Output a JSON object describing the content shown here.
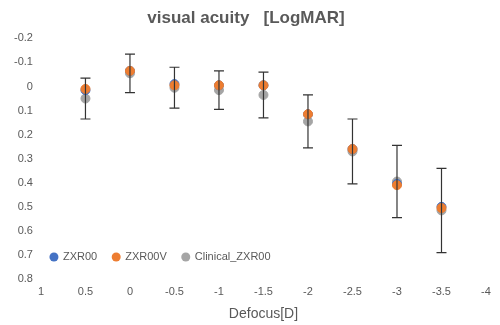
{
  "chart_data": {
    "type": "scatter",
    "title": "visual acuity   [LogMAR]",
    "x_label": "Defocus[D]",
    "x": [
      0.5,
      0,
      -0.5,
      -1,
      -1.5,
      -2,
      -2.5,
      -3,
      -3.5
    ],
    "series": [
      {
        "name": "ZXR00",
        "color": "#4472c4",
        "marker": "circle",
        "values": [
          0.015,
          -0.065,
          -0.01,
          -0.005,
          -0.005,
          0.115,
          0.26,
          0.405,
          0.5
        ]
      },
      {
        "name": "ZXR00V",
        "color": "#ed7d31",
        "marker": "circle",
        "values": [
          0.01,
          -0.065,
          -0.005,
          -0.005,
          -0.005,
          0.115,
          0.26,
          0.41,
          0.505
        ]
      },
      {
        "name": "Clinical_ZXR00",
        "color": "#a5a5a5",
        "marker": "circle",
        "values": [
          0.05,
          -0.055,
          0.005,
          0.015,
          0.035,
          0.145,
          0.27,
          0.395,
          0.515
        ],
        "errors": [
          0.085,
          0.08,
          0.085,
          0.08,
          0.095,
          0.11,
          0.135,
          0.15,
          0.175
        ]
      }
    ],
    "xlim": [
      1,
      -4
    ],
    "xticks": [
      1,
      0.5,
      0,
      -0.5,
      -1,
      -1.5,
      -2,
      -2.5,
      -3,
      -3.5,
      -4
    ],
    "ylim": [
      0.8,
      -0.2
    ],
    "yticks": [
      -0.2,
      -0.1,
      0,
      0.1,
      0.2,
      0.3,
      0.4,
      0.5,
      0.6,
      0.7,
      0.8
    ],
    "grid": false,
    "legend": "lower left"
  }
}
